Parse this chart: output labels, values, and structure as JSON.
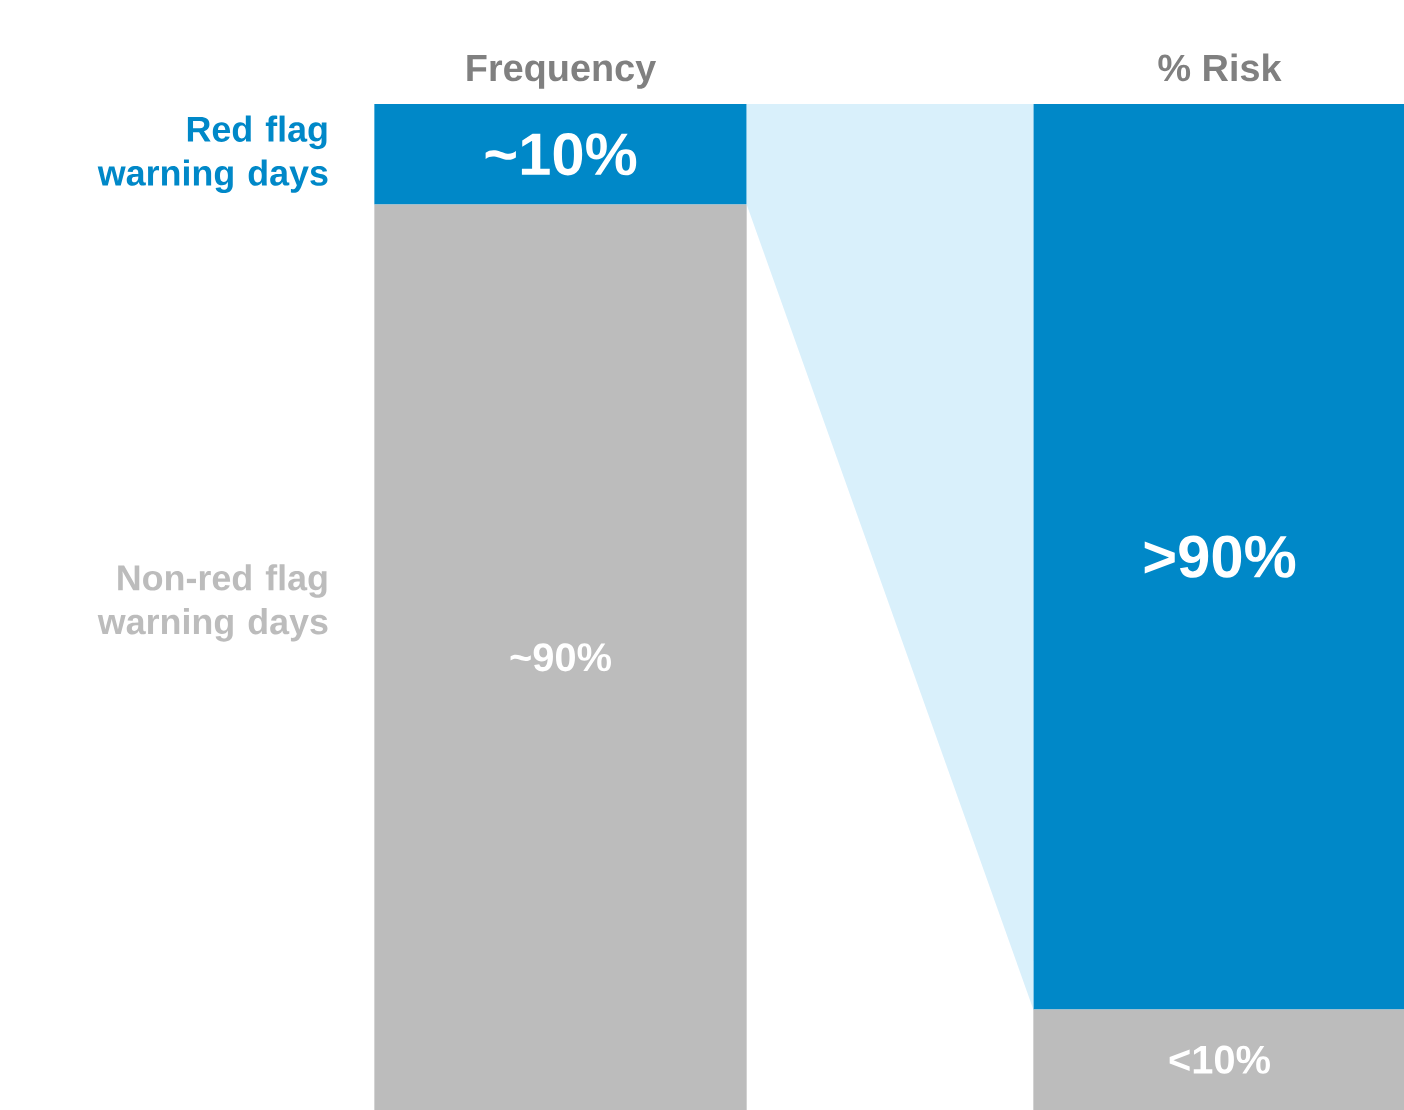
{
  "chart_data": {
    "type": "bar",
    "stacked": true,
    "categories": [
      "Frequency",
      "% Risk"
    ],
    "ylim": [
      0,
      100
    ],
    "tick_labels": "x",
    "series": [
      {
        "name": "Non-red flag warning days",
        "color": "#bcbcbc",
        "values": [
          90,
          10
        ],
        "value_labels": [
          "~90%",
          "<10%"
        ]
      },
      {
        "name": "Red flag warning days",
        "color": "#0088c8",
        "values": [
          10,
          90
        ],
        "value_labels": [
          "~10%",
          ">90%"
        ]
      }
    ]
  }
}
